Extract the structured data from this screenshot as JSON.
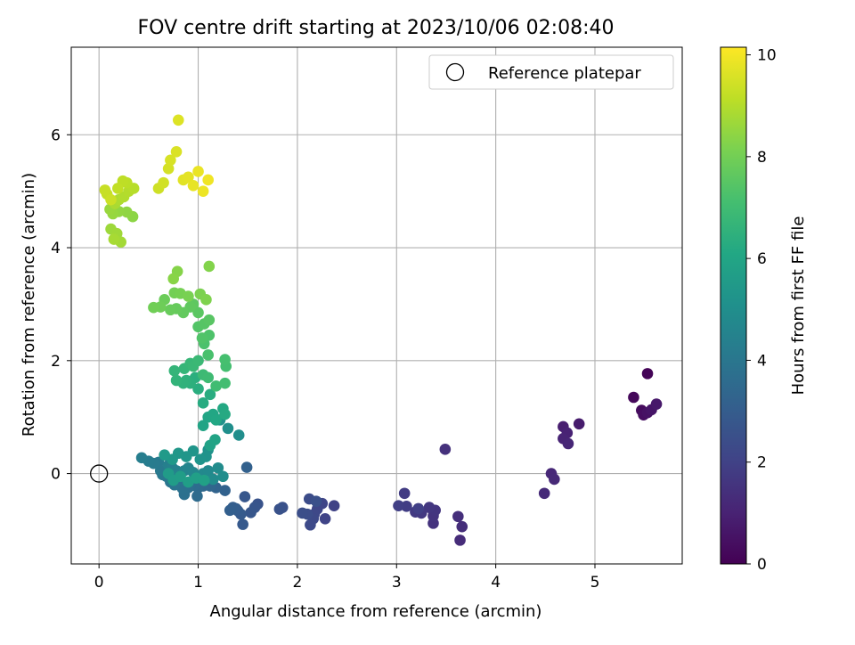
{
  "chart_data": {
    "type": "scatter",
    "title": "FOV centre drift starting at 2023/10/06 02:08:40",
    "xlabel": "Angular distance from reference (arcmin)",
    "ylabel": "Rotation from reference (arcmin)",
    "xlim": [
      -0.28,
      5.88
    ],
    "ylim": [
      -1.6,
      7.55
    ],
    "xticks": [
      0,
      1,
      2,
      3,
      4,
      5
    ],
    "yticks": [
      0,
      2,
      4,
      6
    ],
    "grid": true,
    "legend": {
      "placement": "top-right",
      "entries": [
        "Reference platepar"
      ]
    },
    "reference_point": {
      "x": 0,
      "y": 0,
      "label": "Reference platepar"
    },
    "colorbar": {
      "label": "Hours from first FF file",
      "colormap": "viridis",
      "range": [
        0,
        10.15
      ],
      "ticks": [
        0,
        2,
        4,
        6,
        8,
        10
      ]
    },
    "series": [
      {
        "points": [
          [
            5.53,
            1.77,
            0.1
          ],
          [
            5.39,
            1.35,
            0.2
          ],
          [
            5.47,
            1.12,
            0.3
          ],
          [
            5.49,
            1.04,
            0.4
          ],
          [
            5.53,
            1.08,
            0.5
          ],
          [
            5.57,
            1.13,
            0.6
          ],
          [
            5.62,
            1.23,
            0.7
          ],
          [
            4.84,
            0.88,
            0.8
          ],
          [
            4.68,
            0.83,
            0.9
          ],
          [
            4.72,
            0.72,
            1.0
          ],
          [
            4.68,
            0.62,
            1.05
          ],
          [
            4.73,
            0.53,
            1.1
          ],
          [
            4.56,
            0.0,
            1.15
          ],
          [
            4.59,
            -0.1,
            1.2
          ],
          [
            4.49,
            -0.35,
            1.25
          ],
          [
            3.64,
            -1.18,
            1.3
          ],
          [
            3.66,
            -0.94,
            1.35
          ],
          [
            3.62,
            -0.76,
            1.4
          ],
          [
            3.49,
            0.43,
            1.45
          ],
          [
            3.37,
            -0.88,
            1.5
          ],
          [
            3.37,
            -0.75,
            1.55
          ],
          [
            3.39,
            -0.65,
            1.6
          ],
          [
            3.33,
            -0.6,
            1.65
          ],
          [
            3.25,
            -0.7,
            1.7
          ],
          [
            3.19,
            -0.68,
            1.75
          ],
          [
            3.08,
            -0.35,
            1.8
          ],
          [
            3.1,
            -0.58,
            1.85
          ],
          [
            3.02,
            -0.57,
            1.9
          ],
          [
            3.22,
            -0.62,
            1.95
          ],
          [
            2.37,
            -0.57,
            2.0
          ],
          [
            2.28,
            -0.8,
            2.05
          ],
          [
            2.25,
            -0.53,
            2.1
          ],
          [
            2.2,
            -0.63,
            2.15
          ],
          [
            2.17,
            -0.72,
            2.2
          ],
          [
            2.16,
            -0.8,
            2.25
          ],
          [
            2.13,
            -0.91,
            2.3
          ],
          [
            2.12,
            -0.45,
            2.35
          ],
          [
            2.1,
            -0.72,
            2.4
          ],
          [
            2.05,
            -0.7,
            2.45
          ],
          [
            2.19,
            -0.49,
            2.5
          ],
          [
            1.85,
            -0.6,
            2.55
          ],
          [
            1.82,
            -0.63,
            2.6
          ],
          [
            1.6,
            -0.54,
            2.65
          ],
          [
            1.57,
            -0.6,
            2.7
          ],
          [
            1.53,
            -0.69,
            2.75
          ],
          [
            1.47,
            -0.41,
            2.8
          ],
          [
            1.45,
            -0.9,
            2.85
          ],
          [
            1.43,
            -0.72,
            2.9
          ],
          [
            1.4,
            -0.66,
            2.95
          ],
          [
            1.38,
            -0.62,
            3.0
          ],
          [
            1.35,
            -0.6,
            3.05
          ],
          [
            1.32,
            -0.65,
            3.1
          ],
          [
            1.49,
            0.11,
            3.15
          ],
          [
            1.27,
            -0.3,
            3.2
          ],
          [
            1.18,
            -0.25,
            3.25
          ],
          [
            1.15,
            -0.1,
            3.3
          ],
          [
            1.12,
            -0.22,
            3.35
          ],
          [
            1.1,
            -0.18,
            3.4
          ],
          [
            1.05,
            -0.22,
            3.45
          ],
          [
            1.0,
            -0.25,
            3.5
          ],
          [
            0.99,
            -0.4,
            3.55
          ],
          [
            0.96,
            -0.21,
            3.6
          ],
          [
            0.93,
            -0.17,
            3.65
          ],
          [
            0.9,
            -0.25,
            3.7
          ],
          [
            0.86,
            -0.37,
            3.75
          ],
          [
            0.84,
            -0.26,
            3.8
          ],
          [
            0.8,
            -0.12,
            3.85
          ],
          [
            0.76,
            -0.2,
            3.9
          ],
          [
            0.72,
            -0.15,
            3.95
          ],
          [
            0.68,
            -0.05,
            4.0
          ],
          [
            0.64,
            -0.02,
            4.05
          ],
          [
            0.62,
            0.05,
            4.1
          ],
          [
            0.6,
            0.2,
            4.15
          ],
          [
            0.55,
            0.18,
            4.2
          ],
          [
            0.5,
            0.22,
            4.25
          ],
          [
            0.43,
            0.28,
            4.3
          ],
          [
            0.7,
            0.15,
            4.35
          ],
          [
            0.74,
            0.1,
            4.4
          ],
          [
            0.78,
            0.05,
            4.45
          ],
          [
            0.82,
            0.0,
            4.5
          ],
          [
            0.86,
            0.05,
            4.55
          ],
          [
            0.9,
            0.1,
            4.6
          ],
          [
            0.95,
            0.02,
            4.65
          ],
          [
            1.0,
            -0.05,
            4.7
          ],
          [
            1.05,
            0.0,
            4.75
          ],
          [
            1.1,
            0.05,
            4.8
          ],
          [
            1.15,
            -0.1,
            4.85
          ],
          [
            1.2,
            0.1,
            4.9
          ],
          [
            1.25,
            -0.05,
            4.95
          ],
          [
            1.41,
            0.68,
            5.0
          ],
          [
            1.3,
            0.8,
            5.05
          ],
          [
            1.22,
            0.95,
            5.1
          ],
          [
            1.1,
            0.42,
            5.15
          ],
          [
            1.08,
            0.3,
            5.2
          ],
          [
            1.02,
            0.25,
            5.25
          ],
          [
            0.95,
            0.4,
            5.3
          ],
          [
            0.88,
            0.3,
            5.35
          ],
          [
            0.8,
            0.36,
            5.4
          ],
          [
            0.74,
            0.25,
            5.45
          ],
          [
            0.66,
            0.33,
            5.5
          ],
          [
            0.7,
            0.0,
            5.55
          ],
          [
            0.75,
            -0.12,
            5.6
          ],
          [
            0.82,
            -0.05,
            5.65
          ],
          [
            0.9,
            -0.15,
            5.7
          ],
          [
            0.98,
            -0.08,
            5.75
          ],
          [
            1.06,
            -0.12,
            5.8
          ],
          [
            1.12,
            0.5,
            5.85
          ],
          [
            1.17,
            0.6,
            5.9
          ],
          [
            1.05,
            0.85,
            5.95
          ],
          [
            1.1,
            1.0,
            6.0
          ],
          [
            1.15,
            1.05,
            6.05
          ],
          [
            1.18,
            0.95,
            6.1
          ],
          [
            1.25,
            1.15,
            6.15
          ],
          [
            1.27,
            1.05,
            6.2
          ],
          [
            1.05,
            1.25,
            6.25
          ],
          [
            1.12,
            1.4,
            6.3
          ],
          [
            1.0,
            1.5,
            6.35
          ],
          [
            0.97,
            1.7,
            6.4
          ],
          [
            0.92,
            1.6,
            6.45
          ],
          [
            0.88,
            1.65,
            6.5
          ],
          [
            0.85,
            1.6,
            6.55
          ],
          [
            0.78,
            1.65,
            6.6
          ],
          [
            0.76,
            1.82,
            6.65
          ],
          [
            0.86,
            1.86,
            6.7
          ],
          [
            0.92,
            1.95,
            6.75
          ],
          [
            0.95,
            1.9,
            6.8
          ],
          [
            1.0,
            2.0,
            6.85
          ],
          [
            1.05,
            1.75,
            6.9
          ],
          [
            1.1,
            1.7,
            6.95
          ],
          [
            1.18,
            1.55,
            7.0
          ],
          [
            1.27,
            1.6,
            7.05
          ],
          [
            1.28,
            1.9,
            7.1
          ],
          [
            1.27,
            2.02,
            7.15
          ],
          [
            1.1,
            2.1,
            7.2
          ],
          [
            1.06,
            2.3,
            7.25
          ],
          [
            1.11,
            2.45,
            7.3
          ],
          [
            1.04,
            2.4,
            7.35
          ],
          [
            1.0,
            2.6,
            7.4
          ],
          [
            1.06,
            2.65,
            7.45
          ],
          [
            1.11,
            2.72,
            7.5
          ],
          [
            1.0,
            2.85,
            7.55
          ],
          [
            0.95,
            3.0,
            7.6
          ],
          [
            0.92,
            2.95,
            7.65
          ],
          [
            0.85,
            2.85,
            7.7
          ],
          [
            0.78,
            2.92,
            7.75
          ],
          [
            0.72,
            2.9,
            7.8
          ],
          [
            0.66,
            3.08,
            7.85
          ],
          [
            0.62,
            2.95,
            7.9
          ],
          [
            0.55,
            2.94,
            7.95
          ],
          [
            0.76,
            3.2,
            8.0
          ],
          [
            0.82,
            3.19,
            8.05
          ],
          [
            0.9,
            3.14,
            8.1
          ],
          [
            1.02,
            3.18,
            8.15
          ],
          [
            1.08,
            3.08,
            8.2
          ],
          [
            1.11,
            3.67,
            8.25
          ],
          [
            0.79,
            3.58,
            8.3
          ],
          [
            0.75,
            3.45,
            8.35
          ],
          [
            0.34,
            4.55,
            8.4
          ],
          [
            0.28,
            4.63,
            8.45
          ],
          [
            0.2,
            4.64,
            8.5
          ],
          [
            0.14,
            4.6,
            8.55
          ],
          [
            0.11,
            4.68,
            8.6
          ],
          [
            0.12,
            4.33,
            8.65
          ],
          [
            0.18,
            4.25,
            8.7
          ],
          [
            0.22,
            4.1,
            8.75
          ],
          [
            0.15,
            4.15,
            8.8
          ],
          [
            0.16,
            4.78,
            8.85
          ],
          [
            0.2,
            4.85,
            8.9
          ],
          [
            0.25,
            4.9,
            8.95
          ],
          [
            0.3,
            5.0,
            9.0
          ],
          [
            0.35,
            5.05,
            9.05
          ],
          [
            0.28,
            5.15,
            9.1
          ],
          [
            0.24,
            5.18,
            9.15
          ],
          [
            0.19,
            5.05,
            9.2
          ],
          [
            0.08,
            4.95,
            9.25
          ],
          [
            0.06,
            5.02,
            9.3
          ],
          [
            0.12,
            4.85,
            9.35
          ],
          [
            0.6,
            5.05,
            9.4
          ],
          [
            0.65,
            5.15,
            9.45
          ],
          [
            0.7,
            5.4,
            9.5
          ],
          [
            0.72,
            5.55,
            9.55
          ],
          [
            0.78,
            5.7,
            9.6
          ],
          [
            0.8,
            6.26,
            9.65
          ],
          [
            0.85,
            5.2,
            9.7
          ],
          [
            0.9,
            5.25,
            9.75
          ],
          [
            0.95,
            5.1,
            9.8
          ],
          [
            1.0,
            5.35,
            9.85
          ],
          [
            1.05,
            5.0,
            9.9
          ],
          [
            1.1,
            5.2,
            9.95
          ]
        ]
      }
    ]
  }
}
